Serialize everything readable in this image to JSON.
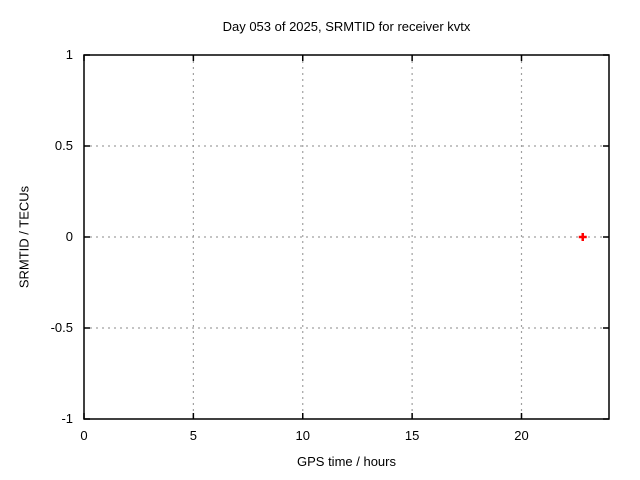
{
  "chart_data": {
    "type": "scatter",
    "title": "Day 053 of 2025, SRMTID for receiver kvtx",
    "xlabel": "GPS time / hours",
    "ylabel": "SRMTID / TECUs",
    "xlim": [
      0,
      24
    ],
    "ylim": [
      -1,
      1
    ],
    "xticks": [
      0,
      5,
      10,
      15,
      20
    ],
    "xtick_labels": [
      "0",
      "5",
      "10",
      "15",
      "20"
    ],
    "yticks": [
      -1,
      -0.5,
      0,
      0.5,
      1
    ],
    "ytick_labels": [
      "-1",
      "-0.5",
      "0",
      "0.5",
      "1"
    ],
    "grid": true,
    "legend": "none",
    "series": [
      {
        "name": "SRMTID",
        "marker": "plus",
        "color": "#ff0000",
        "points": [
          {
            "x": 22.8,
            "y": 0.0
          }
        ]
      }
    ]
  },
  "colors": {
    "background": "#ffffff",
    "axis": "#000000",
    "grid": "#a0a0a0",
    "text": "#000000"
  }
}
